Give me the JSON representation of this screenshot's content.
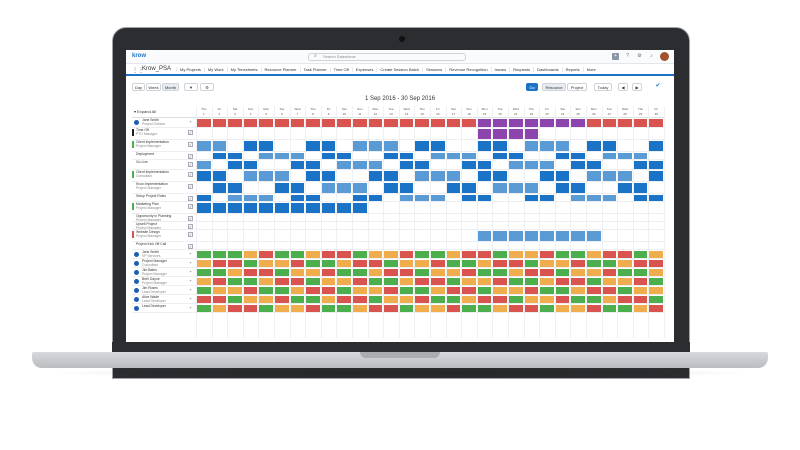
{
  "app": {
    "logo": "krow",
    "name": "Krow_PSA",
    "search_placeholder": "Search Salesforce",
    "launcher_icon": "app-grid-icon"
  },
  "nav": {
    "items": [
      "My Projects",
      "My Work",
      "My Timesheets",
      "Resource Planner",
      "Task Planner",
      "Time Off",
      "Expenses",
      "Create Session Batch",
      "Sessions",
      "Revenue Recognition",
      "Issues",
      "Requests",
      "Dashboards",
      "Reports",
      "More"
    ]
  },
  "toolbar": {
    "day": "Day",
    "week": "Week",
    "month": "Month",
    "go": "Go",
    "resource": "Resource",
    "project": "Project",
    "today": "Today",
    "prev": "◀",
    "next": "▶"
  },
  "calendar": {
    "title": "1 Sep 2016 - 30 Sep 2016",
    "expand_all": "Expand All",
    "day_names": [
      "Thu",
      "Fri",
      "Sat",
      "Sun",
      "Mon",
      "Tue",
      "Wed",
      "Thu",
      "Fri",
      "Sat",
      "Sun",
      "Mon",
      "Tue",
      "Wed",
      "Thu",
      "Fri",
      "Sat",
      "Sun",
      "Mon",
      "Tue",
      "Wed",
      "Thu",
      "Fri",
      "Sat",
      "Sun",
      "Mon",
      "Tue",
      "Wed",
      "Thu",
      "Fri"
    ],
    "day_nums": [
      "1",
      "2",
      "3",
      "4",
      "5",
      "6",
      "7",
      "8",
      "9",
      "10",
      "11",
      "12",
      "13",
      "14",
      "15",
      "16",
      "17",
      "18",
      "19",
      "20",
      "21",
      "22",
      "23",
      "24",
      "25",
      "26",
      "27",
      "28",
      "29",
      "30"
    ]
  },
  "colors": {
    "red": "#d9534f",
    "green": "#4cae4c",
    "orange": "#f0ad4e",
    "blue": "#1a73c7",
    "lightblue": "#5b9bd5",
    "purple": "#8e44ad",
    "accent": "#1a73c7"
  },
  "rows": [
    {
      "label": "Jane Smith",
      "sub": "Project Director",
      "type": "person"
    },
    {
      "label": "Time Off",
      "sub": "PTO Manager",
      "type": "project",
      "stripe": "#222"
    },
    {
      "label": "Client Implementation",
      "sub": "Project Manager",
      "type": "project",
      "stripe": "#4cae4c"
    },
    {
      "label": "Deployment",
      "sub": "",
      "type": "project"
    },
    {
      "label": "Go Live",
      "sub": "",
      "type": "project"
    },
    {
      "label": "Client Implementation",
      "sub": "Consultant",
      "type": "project",
      "stripe": "#4cae4c"
    },
    {
      "label": "Krow Implementation",
      "sub": "Project Manager",
      "type": "project"
    },
    {
      "label": "Setup Project Roles",
      "sub": "",
      "type": "project"
    },
    {
      "label": "Marketing Plan",
      "sub": "Project Manager",
      "type": "project",
      "stripe": "#4cae4c"
    },
    {
      "label": "Opportunity in Planning",
      "sub": "Project Manager",
      "type": "project"
    },
    {
      "label": "Upsell Project",
      "sub": "Project Manager",
      "type": "project"
    },
    {
      "label": "Website Design",
      "sub": "Project Manager",
      "type": "project",
      "stripe": "#d9534f"
    },
    {
      "label": "Project Kick Off Call",
      "sub": "",
      "type": "project"
    },
    {
      "label": "Jane Smith",
      "sub": "VP Services",
      "type": "person"
    },
    {
      "label": "Project Manager",
      "sub": "Consultant",
      "type": "person"
    },
    {
      "label": "Jim Bates",
      "sub": "Project Manager",
      "type": "person"
    },
    {
      "label": "Beth Dayne",
      "sub": "Project Manager",
      "type": "person"
    },
    {
      "label": "Jim Roses",
      "sub": "Lead Developer",
      "type": "person"
    },
    {
      "label": "Alice Wade",
      "sub": "Lead Developer",
      "type": "person"
    },
    {
      "label": "Lead Developer",
      "sub": "",
      "type": "person"
    }
  ]
}
